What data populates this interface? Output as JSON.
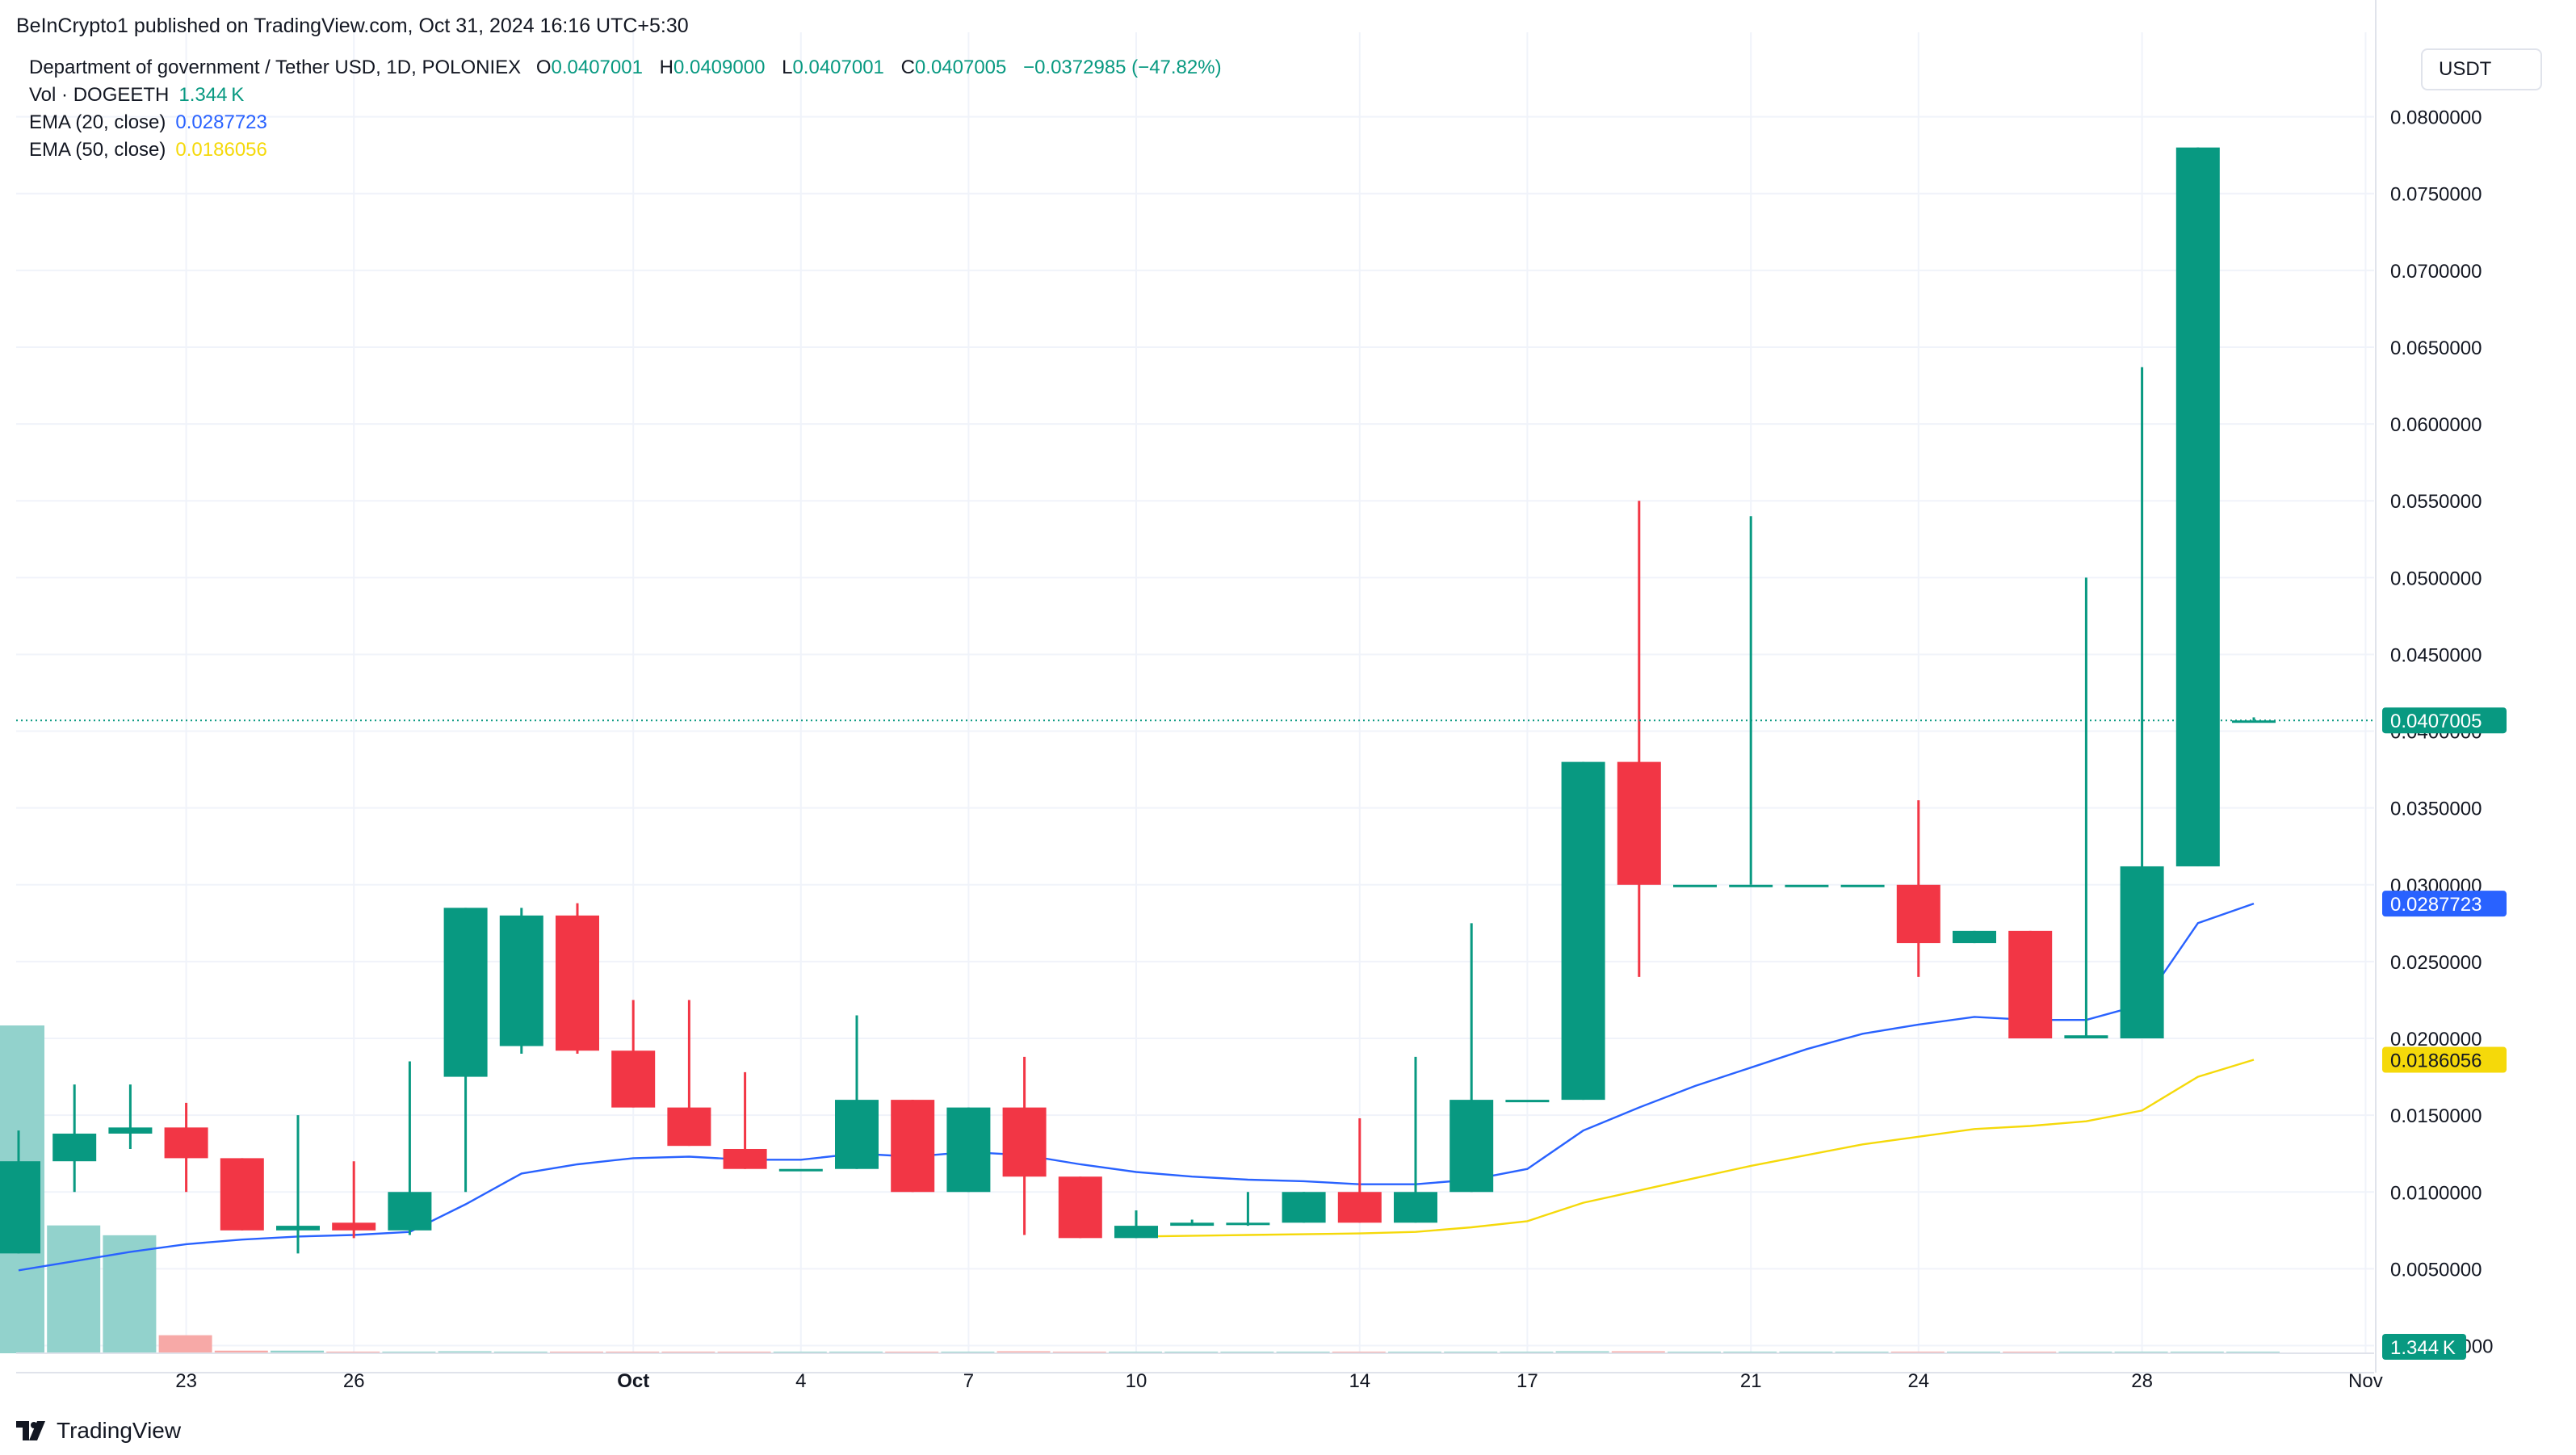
{
  "header": {
    "published": "BeInCrypto1 published on TradingView.com, Oct 31, 2024 16:16 UTC+5:30",
    "symbol": "Department of government / Tether USD, 1D, POLONIEX",
    "ohlc": {
      "o_label": "O",
      "o": "0.0407001",
      "h_label": "H",
      "h": "0.0409000",
      "l_label": "L",
      "l": "0.0407001",
      "c_label": "C",
      "c": "0.0407005",
      "change": "−0.0372985 (−47.82%)"
    },
    "vol_label": "Vol · DOGEETH",
    "vol_value": "1.344 K",
    "ema20_label": "EMA (20, close)",
    "ema20_value": "0.0287723",
    "ema50_label": "EMA (50, close)",
    "ema50_value": "0.0186056"
  },
  "currency_button": "USDT",
  "brand": "TradingView",
  "colors": {
    "up": "#089981",
    "down": "#f23645",
    "ema20": "#2962ff",
    "ema50": "#f5d90a",
    "grid": "#f0f3fa",
    "volume_up": "#92d2cc",
    "volume_down": "#f7a9a7"
  },
  "chart_data": {
    "type": "candlestick",
    "y_axis": {
      "range": [
        -0.0005,
        0.0855
      ],
      "ticks": [
        "0.0800000",
        "0.0750000",
        "0.0700000",
        "0.0650000",
        "0.0600000",
        "0.0550000",
        "0.0500000",
        "0.0450000",
        "0.0400000",
        "0.0350000",
        "0.0300000",
        "0.0250000",
        "0.0200000",
        "0.0150000",
        "0.0100000",
        "0.0050000",
        "−0.0000000"
      ],
      "tick_values": [
        0.08,
        0.075,
        0.07,
        0.065,
        0.06,
        0.055,
        0.05,
        0.045,
        0.04,
        0.035,
        0.03,
        0.025,
        0.02,
        0.015,
        0.01,
        0.005,
        0.0
      ]
    },
    "x_axis": {
      "range": [
        "2024-09-20",
        "2024-11-02"
      ],
      "ticks": [
        {
          "date": "2024-09-23",
          "label": "23"
        },
        {
          "date": "2024-09-26",
          "label": "26"
        },
        {
          "date": "2024-10-01",
          "label": "Oct"
        },
        {
          "date": "2024-10-04",
          "label": "4"
        },
        {
          "date": "2024-10-07",
          "label": "7"
        },
        {
          "date": "2024-10-10",
          "label": "10"
        },
        {
          "date": "2024-10-14",
          "label": "14"
        },
        {
          "date": "2024-10-17",
          "label": "17"
        },
        {
          "date": "2024-10-21",
          "label": "21"
        },
        {
          "date": "2024-10-24",
          "label": "24"
        },
        {
          "date": "2024-10-28",
          "label": "28"
        },
        {
          "date": "2024-11-01",
          "label": "Nov"
        }
      ]
    },
    "candles": [
      {
        "date": "2024-09-20",
        "o": 0.006,
        "h": 0.014,
        "l": 0.006,
        "c": 0.012
      },
      {
        "date": "2024-09-21",
        "o": 0.012,
        "h": 0.017,
        "l": 0.01,
        "c": 0.0138
      },
      {
        "date": "2024-09-22",
        "o": 0.0138,
        "h": 0.017,
        "l": 0.0128,
        "c": 0.0142
      },
      {
        "date": "2024-09-23",
        "o": 0.0142,
        "h": 0.0158,
        "l": 0.01,
        "c": 0.0122
      },
      {
        "date": "2024-09-24",
        "o": 0.0122,
        "h": 0.0122,
        "l": 0.0075,
        "c": 0.0075
      },
      {
        "date": "2024-09-25",
        "o": 0.0075,
        "h": 0.015,
        "l": 0.006,
        "c": 0.0078
      },
      {
        "date": "2024-09-26",
        "o": 0.008,
        "h": 0.012,
        "l": 0.007,
        "c": 0.0075
      },
      {
        "date": "2024-09-27",
        "o": 0.0075,
        "h": 0.0185,
        "l": 0.0072,
        "c": 0.01
      },
      {
        "date": "2024-09-28",
        "o": 0.0175,
        "h": 0.0285,
        "l": 0.01,
        "c": 0.0285
      },
      {
        "date": "2024-09-29",
        "o": 0.0195,
        "h": 0.0285,
        "l": 0.019,
        "c": 0.028
      },
      {
        "date": "2024-09-30",
        "o": 0.028,
        "h": 0.0288,
        "l": 0.019,
        "c": 0.0192
      },
      {
        "date": "2024-10-01",
        "o": 0.0192,
        "h": 0.0225,
        "l": 0.0155,
        "c": 0.0155
      },
      {
        "date": "2024-10-02",
        "o": 0.0155,
        "h": 0.0225,
        "l": 0.013,
        "c": 0.013
      },
      {
        "date": "2024-10-03",
        "o": 0.0128,
        "h": 0.0178,
        "l": 0.0115,
        "c": 0.0115
      },
      {
        "date": "2024-10-04",
        "o": 0.0115,
        "h": 0.0115,
        "l": 0.0115,
        "c": 0.0115
      },
      {
        "date": "2024-10-05",
        "o": 0.0115,
        "h": 0.0215,
        "l": 0.0115,
        "c": 0.016
      },
      {
        "date": "2024-10-06",
        "o": 0.016,
        "h": 0.016,
        "l": 0.01,
        "c": 0.01
      },
      {
        "date": "2024-10-07",
        "o": 0.01,
        "h": 0.0155,
        "l": 0.01,
        "c": 0.0155
      },
      {
        "date": "2024-10-08",
        "o": 0.0155,
        "h": 0.0188,
        "l": 0.0072,
        "c": 0.011
      },
      {
        "date": "2024-10-09",
        "o": 0.011,
        "h": 0.011,
        "l": 0.007,
        "c": 0.007
      },
      {
        "date": "2024-10-10",
        "o": 0.007,
        "h": 0.0088,
        "l": 0.007,
        "c": 0.0078
      },
      {
        "date": "2024-10-11",
        "o": 0.0078,
        "h": 0.0082,
        "l": 0.0078,
        "c": 0.008
      },
      {
        "date": "2024-10-12",
        "o": 0.008,
        "h": 0.01,
        "l": 0.0078,
        "c": 0.008
      },
      {
        "date": "2024-10-13",
        "o": 0.008,
        "h": 0.01,
        "l": 0.008,
        "c": 0.01
      },
      {
        "date": "2024-10-14",
        "o": 0.01,
        "h": 0.0148,
        "l": 0.008,
        "c": 0.008
      },
      {
        "date": "2024-10-15",
        "o": 0.008,
        "h": 0.0188,
        "l": 0.008,
        "c": 0.01
      },
      {
        "date": "2024-10-16",
        "o": 0.01,
        "h": 0.0275,
        "l": 0.01,
        "c": 0.016
      },
      {
        "date": "2024-10-17",
        "o": 0.016,
        "h": 0.016,
        "l": 0.016,
        "c": 0.016
      },
      {
        "date": "2024-10-18",
        "o": 0.016,
        "h": 0.038,
        "l": 0.016,
        "c": 0.038
      },
      {
        "date": "2024-10-19",
        "o": 0.038,
        "h": 0.055,
        "l": 0.024,
        "c": 0.03
      },
      {
        "date": "2024-10-20",
        "o": 0.03,
        "h": 0.03,
        "l": 0.03,
        "c": 0.03
      },
      {
        "date": "2024-10-21",
        "o": 0.03,
        "h": 0.054,
        "l": 0.03,
        "c": 0.03
      },
      {
        "date": "2024-10-22",
        "o": 0.03,
        "h": 0.03,
        "l": 0.03,
        "c": 0.03
      },
      {
        "date": "2024-10-23",
        "o": 0.03,
        "h": 0.03,
        "l": 0.03,
        "c": 0.03
      },
      {
        "date": "2024-10-24",
        "o": 0.03,
        "h": 0.0355,
        "l": 0.024,
        "c": 0.0262
      },
      {
        "date": "2024-10-25",
        "o": 0.0262,
        "h": 0.027,
        "l": 0.0262,
        "c": 0.027
      },
      {
        "date": "2024-10-26",
        "o": 0.027,
        "h": 0.027,
        "l": 0.02,
        "c": 0.02
      },
      {
        "date": "2024-10-27",
        "o": 0.02,
        "h": 0.05,
        "l": 0.02,
        "c": 0.0202
      },
      {
        "date": "2024-10-28",
        "o": 0.02,
        "h": 0.0637,
        "l": 0.02,
        "c": 0.0312
      },
      {
        "date": "2024-10-29",
        "o": 0.0312,
        "h": 0.078,
        "l": 0.0312,
        "c": 0.078
      },
      {
        "date": "2024-10-30",
        "o": 0.0407001,
        "h": 0.0409,
        "l": 0.0407001,
        "c": 0.0407005
      }
    ],
    "ema20": [
      [
        "2024-09-20",
        0.0049
      ],
      [
        "2024-09-21",
        0.0055
      ],
      [
        "2024-09-22",
        0.0061
      ],
      [
        "2024-09-23",
        0.0066
      ],
      [
        "2024-09-24",
        0.0069
      ],
      [
        "2024-09-25",
        0.0071
      ],
      [
        "2024-09-26",
        0.0072
      ],
      [
        "2024-09-27",
        0.0074
      ],
      [
        "2024-09-28",
        0.0092
      ],
      [
        "2024-09-29",
        0.0112
      ],
      [
        "2024-09-30",
        0.0118
      ],
      [
        "2024-10-01",
        0.0122
      ],
      [
        "2024-10-02",
        0.0123
      ],
      [
        "2024-10-03",
        0.0121
      ],
      [
        "2024-10-04",
        0.0121
      ],
      [
        "2024-10-05",
        0.0125
      ],
      [
        "2024-10-06",
        0.0123
      ],
      [
        "2024-10-07",
        0.0126
      ],
      [
        "2024-10-08",
        0.0124
      ],
      [
        "2024-10-09",
        0.0118
      ],
      [
        "2024-10-10",
        0.0113
      ],
      [
        "2024-10-11",
        0.011
      ],
      [
        "2024-10-12",
        0.0108
      ],
      [
        "2024-10-13",
        0.0107
      ],
      [
        "2024-10-14",
        0.0105
      ],
      [
        "2024-10-15",
        0.0105
      ],
      [
        "2024-10-16",
        0.0108
      ],
      [
        "2024-10-17",
        0.0115
      ],
      [
        "2024-10-18",
        0.014
      ],
      [
        "2024-10-19",
        0.0155
      ],
      [
        "2024-10-20",
        0.0169
      ],
      [
        "2024-10-21",
        0.0181
      ],
      [
        "2024-10-22",
        0.0193
      ],
      [
        "2024-10-23",
        0.0203
      ],
      [
        "2024-10-24",
        0.0209
      ],
      [
        "2024-10-25",
        0.0214
      ],
      [
        "2024-10-26",
        0.0212
      ],
      [
        "2024-10-27",
        0.0212
      ],
      [
        "2024-10-28",
        0.0222
      ],
      [
        "2024-10-29",
        0.0275
      ],
      [
        "2024-10-30",
        0.0287723
      ]
    ],
    "ema50": [
      [
        "2024-10-10",
        0.0071
      ],
      [
        "2024-10-12",
        0.0072
      ],
      [
        "2024-10-14",
        0.0073
      ],
      [
        "2024-10-15",
        0.0074
      ],
      [
        "2024-10-16",
        0.0077
      ],
      [
        "2024-10-17",
        0.0081
      ],
      [
        "2024-10-18",
        0.0093
      ],
      [
        "2024-10-19",
        0.0101
      ],
      [
        "2024-10-20",
        0.0109
      ],
      [
        "2024-10-21",
        0.0117
      ],
      [
        "2024-10-22",
        0.0124
      ],
      [
        "2024-10-23",
        0.0131
      ],
      [
        "2024-10-24",
        0.0136
      ],
      [
        "2024-10-25",
        0.0141
      ],
      [
        "2024-10-26",
        0.0143
      ],
      [
        "2024-10-27",
        0.0146
      ],
      [
        "2024-10-28",
        0.0153
      ],
      [
        "2024-10-29",
        0.0175
      ],
      [
        "2024-10-30",
        0.0186056
      ]
    ],
    "volume": [
      {
        "date": "2024-09-20",
        "value": 1.0,
        "dir": "up"
      },
      {
        "date": "2024-09-21",
        "value": 0.39,
        "dir": "up"
      },
      {
        "date": "2024-09-22",
        "value": 0.36,
        "dir": "up"
      },
      {
        "date": "2024-09-23",
        "value": 0.055,
        "dir": "down"
      },
      {
        "date": "2024-09-24",
        "value": 0.008,
        "dir": "down"
      },
      {
        "date": "2024-09-25",
        "value": 0.008,
        "dir": "up"
      },
      {
        "date": "2024-09-26",
        "value": 0.005,
        "dir": "down"
      },
      {
        "date": "2024-09-27",
        "value": 0.005,
        "dir": "up"
      },
      {
        "date": "2024-09-28",
        "value": 0.006,
        "dir": "up"
      },
      {
        "date": "2024-09-29",
        "value": 0.005,
        "dir": "up"
      },
      {
        "date": "2024-09-30",
        "value": 0.005,
        "dir": "down"
      },
      {
        "date": "2024-10-01",
        "value": 0.005,
        "dir": "down"
      },
      {
        "date": "2024-10-02",
        "value": 0.005,
        "dir": "down"
      },
      {
        "date": "2024-10-03",
        "value": 0.004,
        "dir": "down"
      },
      {
        "date": "2024-10-04",
        "value": 0.004,
        "dir": "up"
      },
      {
        "date": "2024-10-05",
        "value": 0.005,
        "dir": "up"
      },
      {
        "date": "2024-10-06",
        "value": 0.004,
        "dir": "down"
      },
      {
        "date": "2024-10-07",
        "value": 0.004,
        "dir": "up"
      },
      {
        "date": "2024-10-08",
        "value": 0.006,
        "dir": "down"
      },
      {
        "date": "2024-10-09",
        "value": 0.004,
        "dir": "down"
      },
      {
        "date": "2024-10-10",
        "value": 0.004,
        "dir": "up"
      },
      {
        "date": "2024-10-11",
        "value": 0.004,
        "dir": "up"
      },
      {
        "date": "2024-10-12",
        "value": 0.004,
        "dir": "up"
      },
      {
        "date": "2024-10-13",
        "value": 0.004,
        "dir": "up"
      },
      {
        "date": "2024-10-14",
        "value": 0.004,
        "dir": "down"
      },
      {
        "date": "2024-10-15",
        "value": 0.004,
        "dir": "up"
      },
      {
        "date": "2024-10-16",
        "value": 0.005,
        "dir": "up"
      },
      {
        "date": "2024-10-17",
        "value": 0.004,
        "dir": "up"
      },
      {
        "date": "2024-10-18",
        "value": 0.006,
        "dir": "up"
      },
      {
        "date": "2024-10-19",
        "value": 0.006,
        "dir": "down"
      },
      {
        "date": "2024-10-20",
        "value": 0.004,
        "dir": "up"
      },
      {
        "date": "2024-10-21",
        "value": 0.005,
        "dir": "up"
      },
      {
        "date": "2024-10-22",
        "value": 0.004,
        "dir": "up"
      },
      {
        "date": "2024-10-23",
        "value": 0.004,
        "dir": "up"
      },
      {
        "date": "2024-10-24",
        "value": 0.005,
        "dir": "down"
      },
      {
        "date": "2024-10-25",
        "value": 0.004,
        "dir": "up"
      },
      {
        "date": "2024-10-26",
        "value": 0.004,
        "dir": "down"
      },
      {
        "date": "2024-10-27",
        "value": 0.004,
        "dir": "up"
      },
      {
        "date": "2024-10-28",
        "value": 0.005,
        "dir": "up"
      },
      {
        "date": "2024-10-29",
        "value": 0.005,
        "dir": "up"
      },
      {
        "date": "2024-10-30",
        "value": 0.004,
        "dir": "up"
      }
    ],
    "last_price": {
      "value": 0.0407005,
      "label": "0.0407005"
    },
    "ema20_last": {
      "value": 0.0287723,
      "label": "0.0287723"
    },
    "ema50_last": {
      "value": 0.0186056,
      "label": "0.0186056"
    },
    "volume_last_label": "1.344 K",
    "grid": true
  }
}
